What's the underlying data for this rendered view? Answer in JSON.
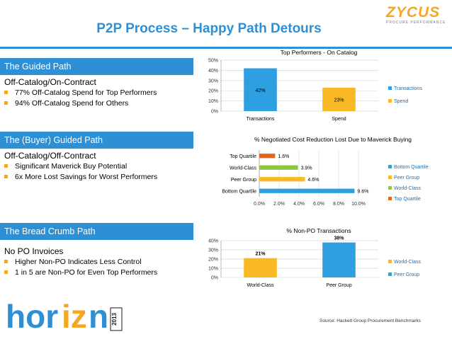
{
  "header": {
    "title": "P2P Process – Happy Path Detours"
  },
  "logo": {
    "name": "ZYCUS",
    "tagline": "PROCURE PERFORMANCE"
  },
  "sections": [
    {
      "heading": "The Guided Path",
      "subheading": "Off-Catalog/On-Contract",
      "bullets": [
        "77% Off-Catalog Spend for Top Performers",
        "94% Off-Catalog Spend for Others"
      ]
    },
    {
      "heading": "The (Buyer) Guided Path",
      "subheading": "Off-Catalog/Off-Contract",
      "bullets": [
        "Significant Maverick Buy Potential",
        "6x More Lost Savings for Worst Performers"
      ]
    },
    {
      "heading": "The Bread Crumb Path",
      "subheading": "No PO Invoices",
      "bullets": [
        "Higher Non-PO Indicates Less Control",
        "1 in 5 are Non-PO for Even Top Performers"
      ]
    }
  ],
  "chart_data": [
    {
      "type": "bar",
      "title": "Top Performers - On Catalog",
      "categories": [
        "Transactions",
        "Spend"
      ],
      "values": [
        42,
        23
      ],
      "labels": [
        "42%",
        "23%"
      ],
      "colors": [
        "#2e9fe0",
        "#f9b924"
      ],
      "legend": [
        "Transactions",
        "Spend"
      ],
      "legend_placement": "right",
      "yticks": [
        "0%",
        "10%",
        "20%",
        "30%",
        "40%",
        "50%"
      ],
      "ylim": [
        0,
        50
      ],
      "grid": true
    },
    {
      "type": "bar",
      "orientation": "horizontal",
      "title": "% Negotiated Cost Reduction Lost Due to Maverick Buying",
      "categories": [
        "Top Quartile",
        "World-Class",
        "Peer Group",
        "Bottom Quartile"
      ],
      "values": [
        1.6,
        3.9,
        4.6,
        9.6
      ],
      "labels": [
        "1.6%",
        "3.9%",
        "4.6%",
        "9.6%"
      ],
      "colors": [
        "#e0671f",
        "#8dc63f",
        "#f9b924",
        "#2e9fe0"
      ],
      "legend": [
        "Bottom Quartile",
        "Peer Group",
        "World-Class",
        "Top Quartile"
      ],
      "legend_colors": [
        "#2e9fe0",
        "#f9b924",
        "#8dc63f",
        "#e0671f"
      ],
      "legend_placement": "right",
      "xticks": [
        "0.0%",
        "2.0%",
        "4.0%",
        "6.0%",
        "8.0%",
        "10.0%"
      ],
      "xlim": [
        0,
        10
      ],
      "grid": true
    },
    {
      "type": "bar",
      "title": "% Non-PO Transactions",
      "categories": [
        "World-Class",
        "Peer Group"
      ],
      "values": [
        21,
        38
      ],
      "labels": [
        "21%",
        "38%"
      ],
      "colors": [
        "#f9b924",
        "#2e9fe0"
      ],
      "legend": [
        "World-Class",
        "Peer Group"
      ],
      "legend_placement": "right",
      "yticks": [
        "0%",
        "10%",
        "20%",
        "30%",
        "40%"
      ],
      "ylim": [
        0,
        40
      ],
      "grid": true
    }
  ],
  "footer": {
    "source": "Source: Hackett Group Procurement Benchmarks"
  },
  "brand": {
    "word_left": "hor",
    "word_mid": "iz",
    "word_right": "n",
    "year": "2013"
  }
}
